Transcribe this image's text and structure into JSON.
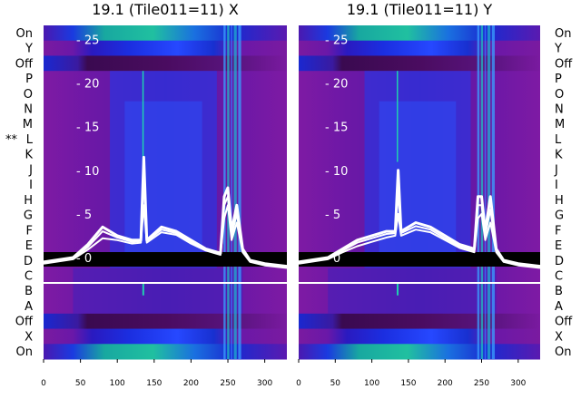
{
  "chart_data": [
    {
      "type": "heatmap",
      "title": "19.1 (Tile011=11) X",
      "xlim": [
        0,
        330
      ],
      "x_ticks": [
        "0",
        "50",
        "100",
        "150",
        "200",
        "250",
        "300"
      ],
      "ylim": [
        -3,
        27
      ],
      "y_ticks": [
        "0",
        "5",
        "10",
        "15",
        "20",
        "25"
      ],
      "row_labels": [
        "On",
        "Y",
        "Off",
        "P",
        "O",
        "N",
        "M",
        "L",
        "K",
        "J",
        "I",
        "H",
        "G",
        "F",
        "E",
        "D",
        "C",
        "B",
        "A",
        "Off",
        "X",
        "On"
      ],
      "row_label_marker": "**",
      "series": [
        {
          "x": [
            0,
            40,
            60,
            80,
            100,
            120,
            132,
            136,
            140,
            160,
            180,
            200,
            220,
            240,
            245,
            250,
            255,
            262,
            270,
            280,
            300,
            330
          ],
          "y": [
            -0.5,
            0.0,
            1.5,
            3.5,
            2.5,
            2.0,
            2.0,
            11.5,
            2.0,
            3.5,
            3.0,
            2.0,
            1.0,
            0.5,
            7.0,
            8.0,
            3.0,
            6.0,
            1.0,
            -0.3,
            -0.7,
            -1.0
          ]
        },
        {
          "x": [
            0,
            40,
            60,
            80,
            100,
            120,
            132,
            136,
            140,
            160,
            180,
            200,
            220,
            240,
            245,
            250,
            255,
            262,
            270,
            280,
            300,
            330
          ],
          "y": [
            -0.6,
            -0.1,
            1.2,
            3.0,
            2.3,
            1.8,
            1.9,
            9.0,
            1.9,
            3.2,
            2.8,
            1.8,
            0.9,
            0.4,
            6.0,
            7.0,
            2.5,
            5.0,
            0.8,
            -0.4,
            -0.8,
            -1.1
          ]
        },
        {
          "x": [
            0,
            40,
            60,
            80,
            100,
            120,
            132,
            136,
            140,
            160,
            180,
            200,
            220,
            240,
            245,
            250,
            255,
            262,
            270,
            280,
            300,
            330
          ],
          "y": [
            -0.7,
            -0.2,
            0.9,
            2.2,
            2.0,
            1.6,
            1.7,
            6.0,
            1.7,
            2.9,
            2.6,
            1.6,
            0.8,
            0.3,
            4.5,
            6.0,
            2.0,
            4.0,
            0.6,
            -0.5,
            -0.9,
            -1.2
          ]
        }
      ]
    },
    {
      "type": "heatmap",
      "title": "19.1 (Tile011=11) Y",
      "xlim": [
        0,
        330
      ],
      "x_ticks": [
        "0",
        "50",
        "100",
        "150",
        "200",
        "250",
        "300"
      ],
      "ylim": [
        -3,
        27
      ],
      "y_ticks": [
        "0",
        "5",
        "10",
        "15",
        "20",
        "25"
      ],
      "row_labels": [
        "On",
        "Y",
        "Off",
        "P",
        "O",
        "N",
        "M",
        "L",
        "K",
        "J",
        "I",
        "H",
        "G",
        "F",
        "E",
        "D",
        "C",
        "B",
        "A",
        "Off",
        "X",
        "On"
      ],
      "series": [
        {
          "x": [
            0,
            40,
            60,
            80,
            100,
            120,
            132,
            136,
            140,
            160,
            180,
            200,
            220,
            240,
            245,
            250,
            255,
            262,
            270,
            280,
            300,
            330
          ],
          "y": [
            -0.5,
            0.0,
            1.0,
            2.0,
            2.5,
            3.0,
            3.0,
            10.0,
            3.0,
            4.0,
            3.5,
            2.5,
            1.5,
            1.0,
            7.0,
            7.0,
            3.0,
            7.0,
            1.0,
            -0.3,
            -0.7,
            -1.0
          ]
        },
        {
          "x": [
            0,
            40,
            60,
            80,
            100,
            120,
            132,
            136,
            140,
            160,
            180,
            200,
            220,
            240,
            245,
            250,
            255,
            262,
            270,
            280,
            300,
            330
          ],
          "y": [
            -0.6,
            -0.1,
            0.8,
            1.7,
            2.2,
            2.7,
            2.8,
            7.5,
            2.8,
            3.6,
            3.2,
            2.2,
            1.3,
            0.8,
            6.0,
            6.0,
            2.5,
            5.5,
            0.8,
            -0.4,
            -0.8,
            -1.1
          ]
        },
        {
          "x": [
            0,
            40,
            60,
            80,
            100,
            120,
            132,
            136,
            140,
            160,
            180,
            200,
            220,
            240,
            245,
            250,
            255,
            262,
            270,
            280,
            300,
            330
          ],
          "y": [
            -0.7,
            -0.2,
            0.6,
            1.3,
            1.8,
            2.3,
            2.5,
            5.0,
            2.5,
            3.2,
            2.9,
            2.0,
            1.1,
            0.6,
            4.5,
            5.0,
            2.0,
            4.0,
            0.6,
            -0.5,
            -0.9,
            -1.2
          ]
        }
      ]
    }
  ]
}
